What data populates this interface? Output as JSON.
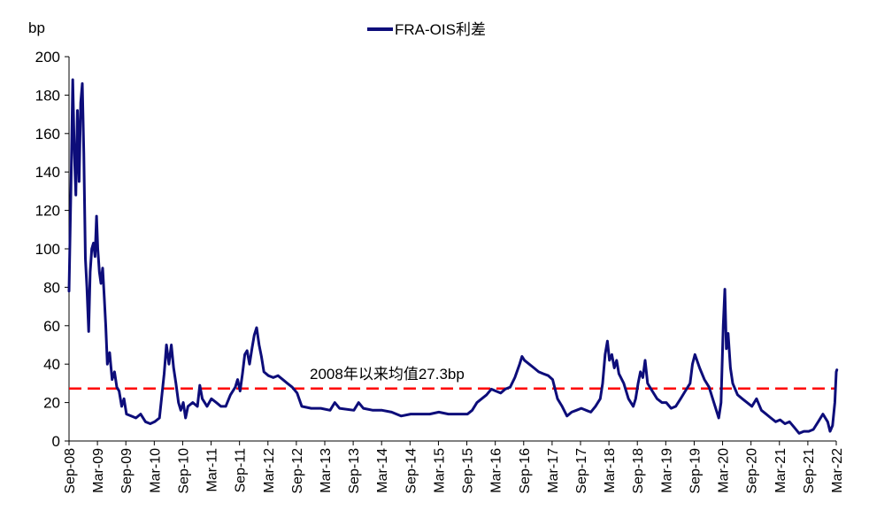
{
  "chart_data": {
    "type": "line",
    "ylabel": "bp",
    "ylim": [
      0,
      200
    ],
    "yticks": [
      0,
      20,
      40,
      60,
      80,
      100,
      120,
      140,
      160,
      180,
      200
    ],
    "xlim": [
      "2008-09",
      "2022-03"
    ],
    "xtick_labels": [
      "Sep-08",
      "Mar-09",
      "Sep-09",
      "Mar-10",
      "Sep-10",
      "Mar-11",
      "Sep-11",
      "Mar-12",
      "Sep-12",
      "Mar-13",
      "Sep-13",
      "Mar-14",
      "Sep-14",
      "Mar-15",
      "Sep-15",
      "Mar-16",
      "Sep-16",
      "Mar-17",
      "Sep-17",
      "Mar-18",
      "Sep-18",
      "Mar-19",
      "Sep-19",
      "Mar-20",
      "Sep-20",
      "Mar-21",
      "Sep-21",
      "Mar-22"
    ],
    "legend": {
      "position": "top-center"
    },
    "series": [
      {
        "name": "FRA-OIS利差",
        "color": "#0d0d7a",
        "points": [
          [
            "2008-09-01",
            78
          ],
          [
            "2008-09-15",
            140
          ],
          [
            "2008-09-25",
            188
          ],
          [
            "2008-10-05",
            150
          ],
          [
            "2008-10-15",
            128
          ],
          [
            "2008-10-25",
            172
          ],
          [
            "2008-11-05",
            135
          ],
          [
            "2008-11-15",
            176
          ],
          [
            "2008-11-25",
            186
          ],
          [
            "2008-12-05",
            150
          ],
          [
            "2008-12-15",
            95
          ],
          [
            "2008-12-25",
            80
          ],
          [
            "2009-01-05",
            57
          ],
          [
            "2009-01-15",
            88
          ],
          [
            "2009-01-25",
            100
          ],
          [
            "2009-02-05",
            103
          ],
          [
            "2009-02-15",
            96
          ],
          [
            "2009-02-25",
            117
          ],
          [
            "2009-03-05",
            100
          ],
          [
            "2009-03-15",
            88
          ],
          [
            "2009-03-25",
            82
          ],
          [
            "2009-04-05",
            90
          ],
          [
            "2009-04-15",
            75
          ],
          [
            "2009-04-25",
            60
          ],
          [
            "2009-05-05",
            40
          ],
          [
            "2009-05-20",
            46
          ],
          [
            "2009-06-05",
            32
          ],
          [
            "2009-06-20",
            36
          ],
          [
            "2009-07-05",
            28
          ],
          [
            "2009-07-20",
            26
          ],
          [
            "2009-08-05",
            18
          ],
          [
            "2009-08-20",
            22
          ],
          [
            "2009-09-05",
            14
          ],
          [
            "2009-10-05",
            13
          ],
          [
            "2009-11-05",
            12
          ],
          [
            "2009-12-05",
            14
          ],
          [
            "2010-01-05",
            10
          ],
          [
            "2010-02-05",
            9
          ],
          [
            "2010-03-05",
            10
          ],
          [
            "2010-04-05",
            12
          ],
          [
            "2010-05-05",
            35
          ],
          [
            "2010-05-20",
            50
          ],
          [
            "2010-06-05",
            40
          ],
          [
            "2010-06-20",
            50
          ],
          [
            "2010-07-05",
            38
          ],
          [
            "2010-07-20",
            30
          ],
          [
            "2010-08-05",
            20
          ],
          [
            "2010-08-20",
            16
          ],
          [
            "2010-09-05",
            20
          ],
          [
            "2010-09-20",
            12
          ],
          [
            "2010-10-05",
            18
          ],
          [
            "2010-11-05",
            20
          ],
          [
            "2010-12-05",
            18
          ],
          [
            "2010-12-20",
            29
          ],
          [
            "2011-01-05",
            22
          ],
          [
            "2011-02-05",
            18
          ],
          [
            "2011-03-05",
            22
          ],
          [
            "2011-04-05",
            20
          ],
          [
            "2011-05-05",
            18
          ],
          [
            "2011-06-05",
            18
          ],
          [
            "2011-07-05",
            24
          ],
          [
            "2011-08-05",
            28
          ],
          [
            "2011-08-20",
            32
          ],
          [
            "2011-09-05",
            26
          ],
          [
            "2011-09-20",
            35
          ],
          [
            "2011-10-05",
            45
          ],
          [
            "2011-10-20",
            47
          ],
          [
            "2011-11-05",
            40
          ],
          [
            "2011-11-20",
            48
          ],
          [
            "2011-12-05",
            55
          ],
          [
            "2011-12-20",
            59
          ],
          [
            "2012-01-05",
            50
          ],
          [
            "2012-01-20",
            44
          ],
          [
            "2012-02-05",
            36
          ],
          [
            "2012-03-05",
            34
          ],
          [
            "2012-04-05",
            33
          ],
          [
            "2012-05-05",
            34
          ],
          [
            "2012-06-05",
            32
          ],
          [
            "2012-07-05",
            30
          ],
          [
            "2012-08-05",
            28
          ],
          [
            "2012-09-05",
            25
          ],
          [
            "2012-10-05",
            18
          ],
          [
            "2012-12-05",
            17
          ],
          [
            "2013-02-05",
            17
          ],
          [
            "2013-04-05",
            16
          ],
          [
            "2013-05-05",
            20
          ],
          [
            "2013-06-05",
            17
          ],
          [
            "2013-09-05",
            16
          ],
          [
            "2013-10-05",
            20
          ],
          [
            "2013-11-05",
            17
          ],
          [
            "2014-01-05",
            16
          ],
          [
            "2014-03-05",
            16
          ],
          [
            "2014-05-05",
            15
          ],
          [
            "2014-07-05",
            13
          ],
          [
            "2014-09-05",
            14
          ],
          [
            "2014-11-05",
            14
          ],
          [
            "2015-01-05",
            14
          ],
          [
            "2015-03-05",
            15
          ],
          [
            "2015-05-05",
            14
          ],
          [
            "2015-07-05",
            14
          ],
          [
            "2015-09-05",
            14
          ],
          [
            "2015-10-05",
            16
          ],
          [
            "2015-11-05",
            20
          ],
          [
            "2016-01-05",
            24
          ],
          [
            "2016-02-05",
            27
          ],
          [
            "2016-03-05",
            26
          ],
          [
            "2016-04-05",
            25
          ],
          [
            "2016-05-05",
            27
          ],
          [
            "2016-06-05",
            28
          ],
          [
            "2016-07-05",
            33
          ],
          [
            "2016-08-05",
            40
          ],
          [
            "2016-08-20",
            44
          ],
          [
            "2016-09-05",
            42
          ],
          [
            "2016-10-05",
            40
          ],
          [
            "2016-11-05",
            38
          ],
          [
            "2016-12-05",
            36
          ],
          [
            "2017-01-05",
            35
          ],
          [
            "2017-02-05",
            34
          ],
          [
            "2017-03-05",
            32
          ],
          [
            "2017-04-05",
            22
          ],
          [
            "2017-05-05",
            18
          ],
          [
            "2017-06-05",
            13
          ],
          [
            "2017-07-05",
            15
          ],
          [
            "2017-08-05",
            16
          ],
          [
            "2017-09-05",
            17
          ],
          [
            "2017-10-05",
            16
          ],
          [
            "2017-11-05",
            15
          ],
          [
            "2017-12-05",
            18
          ],
          [
            "2018-01-05",
            22
          ],
          [
            "2018-01-20",
            30
          ],
          [
            "2018-02-05",
            45
          ],
          [
            "2018-02-20",
            52
          ],
          [
            "2018-03-05",
            42
          ],
          [
            "2018-03-20",
            45
          ],
          [
            "2018-04-05",
            38
          ],
          [
            "2018-04-20",
            42
          ],
          [
            "2018-05-05",
            35
          ],
          [
            "2018-06-05",
            30
          ],
          [
            "2018-07-05",
            22
          ],
          [
            "2018-08-05",
            18
          ],
          [
            "2018-08-20",
            22
          ],
          [
            "2018-09-05",
            30
          ],
          [
            "2018-09-20",
            36
          ],
          [
            "2018-10-05",
            33
          ],
          [
            "2018-10-20",
            42
          ],
          [
            "2018-11-05",
            30
          ],
          [
            "2018-12-05",
            26
          ],
          [
            "2019-01-05",
            22
          ],
          [
            "2019-02-05",
            20
          ],
          [
            "2019-03-05",
            20
          ],
          [
            "2019-04-05",
            17
          ],
          [
            "2019-05-05",
            18
          ],
          [
            "2019-06-05",
            22
          ],
          [
            "2019-07-05",
            26
          ],
          [
            "2019-08-05",
            30
          ],
          [
            "2019-08-20",
            40
          ],
          [
            "2019-09-05",
            45
          ],
          [
            "2019-10-05",
            38
          ],
          [
            "2019-11-05",
            32
          ],
          [
            "2019-12-05",
            28
          ],
          [
            "2020-01-05",
            20
          ],
          [
            "2020-02-05",
            12
          ],
          [
            "2020-02-20",
            20
          ],
          [
            "2020-03-05",
            60
          ],
          [
            "2020-03-15",
            79
          ],
          [
            "2020-03-25",
            48
          ],
          [
            "2020-04-05",
            56
          ],
          [
            "2020-04-20",
            38
          ],
          [
            "2020-05-05",
            30
          ],
          [
            "2020-06-05",
            24
          ],
          [
            "2020-07-05",
            22
          ],
          [
            "2020-08-05",
            20
          ],
          [
            "2020-09-05",
            18
          ],
          [
            "2020-10-05",
            22
          ],
          [
            "2020-11-05",
            16
          ],
          [
            "2020-12-05",
            14
          ],
          [
            "2021-01-05",
            12
          ],
          [
            "2021-02-05",
            10
          ],
          [
            "2021-03-05",
            11
          ],
          [
            "2021-04-05",
            9
          ],
          [
            "2021-05-05",
            10
          ],
          [
            "2021-06-05",
            7
          ],
          [
            "2021-07-05",
            4
          ],
          [
            "2021-08-05",
            5
          ],
          [
            "2021-09-05",
            5
          ],
          [
            "2021-10-05",
            6
          ],
          [
            "2021-11-05",
            10
          ],
          [
            "2021-12-05",
            14
          ],
          [
            "2022-01-05",
            10
          ],
          [
            "2022-01-20",
            5
          ],
          [
            "2022-02-05",
            8
          ],
          [
            "2022-02-20",
            20
          ],
          [
            "2022-03-01",
            36
          ],
          [
            "2022-03-05",
            37
          ]
        ]
      }
    ],
    "reference_line": {
      "label": "2008年以来均值27.3bp",
      "value": 27.3,
      "color": "#ff0000",
      "style": "dashed"
    }
  }
}
